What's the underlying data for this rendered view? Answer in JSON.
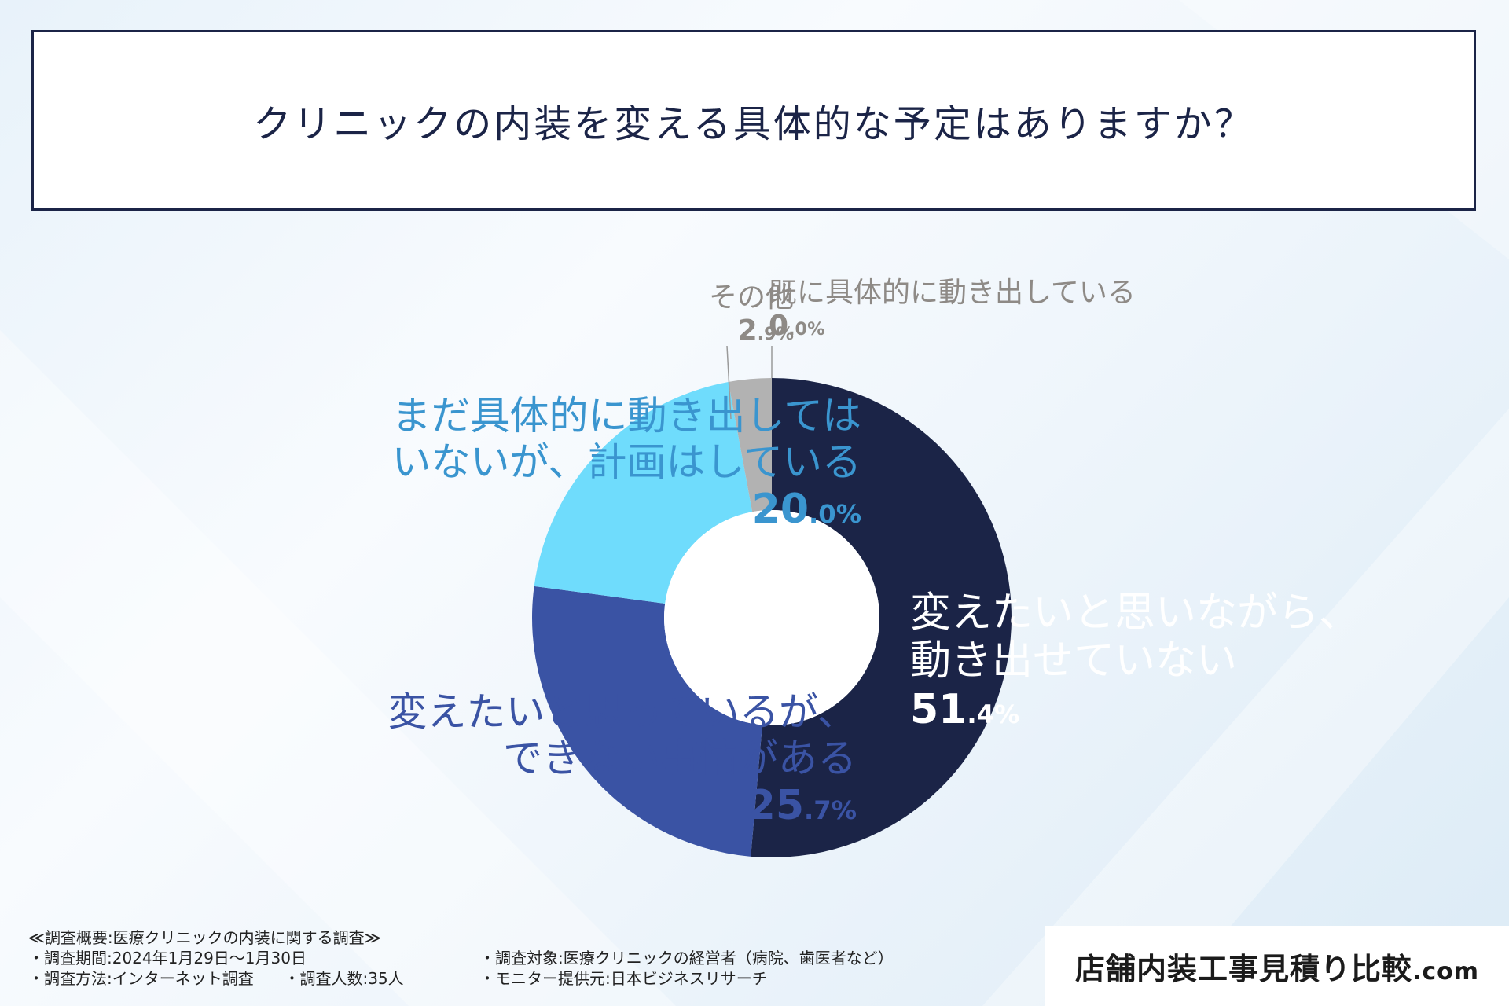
{
  "title": "クリニックの内装を変える具体的な予定はありますか？",
  "chart_data": {
    "type": "pie",
    "title": "クリニックの内装を変える具体的な予定はありますか？",
    "slices": [
      {
        "label_lines": [
          "変えたいと思いながら、",
          "動き出せていない"
        ],
        "value": 51.4,
        "pct_int": "51",
        "pct_dec": ".4%",
        "color": "#1b2447"
      },
      {
        "label_lines": [
          "変えたいと思っているが、",
          "できない事情がある"
        ],
        "value": 25.7,
        "pct_int": "25",
        "pct_dec": ".7%",
        "color": "#3a53a4"
      },
      {
        "label_lines": [
          "まだ具体的に動き出しては",
          "いないが、計画はしている"
        ],
        "value": 20.0,
        "pct_int": "20",
        "pct_dec": ".0%",
        "color": "#6fdcfc"
      },
      {
        "label_lines": [
          "その他"
        ],
        "value": 2.9,
        "pct_int": "2",
        "pct_dec": ".9%",
        "color": "#b2b2b2"
      },
      {
        "label_lines": [
          "既に具体的に動き出している"
        ],
        "value": 0.0,
        "pct_int": "0",
        "pct_dec": ".0%",
        "color": "#8e8a86"
      }
    ],
    "label_colors": [
      "#ffffff",
      "#3a53a4",
      "#3a95cf",
      "#8e8a86",
      "#8e8a86"
    ]
  },
  "footer": {
    "heading": "≪調査概要:医療クリニックの内装に関する調査≫",
    "period": "・調査期間:2024年1月29日～1月30日",
    "method": "・調査方法:インターネット調査",
    "count": "・調査人数:35人",
    "target": "・調査対象:医療クリニックの経営者（病院、歯医者など）",
    "provider": "・モニター提供元:日本ビジネスリサーチ"
  },
  "brand": {
    "main": "店舗内装工事見積り比較",
    "domain": ".com"
  }
}
